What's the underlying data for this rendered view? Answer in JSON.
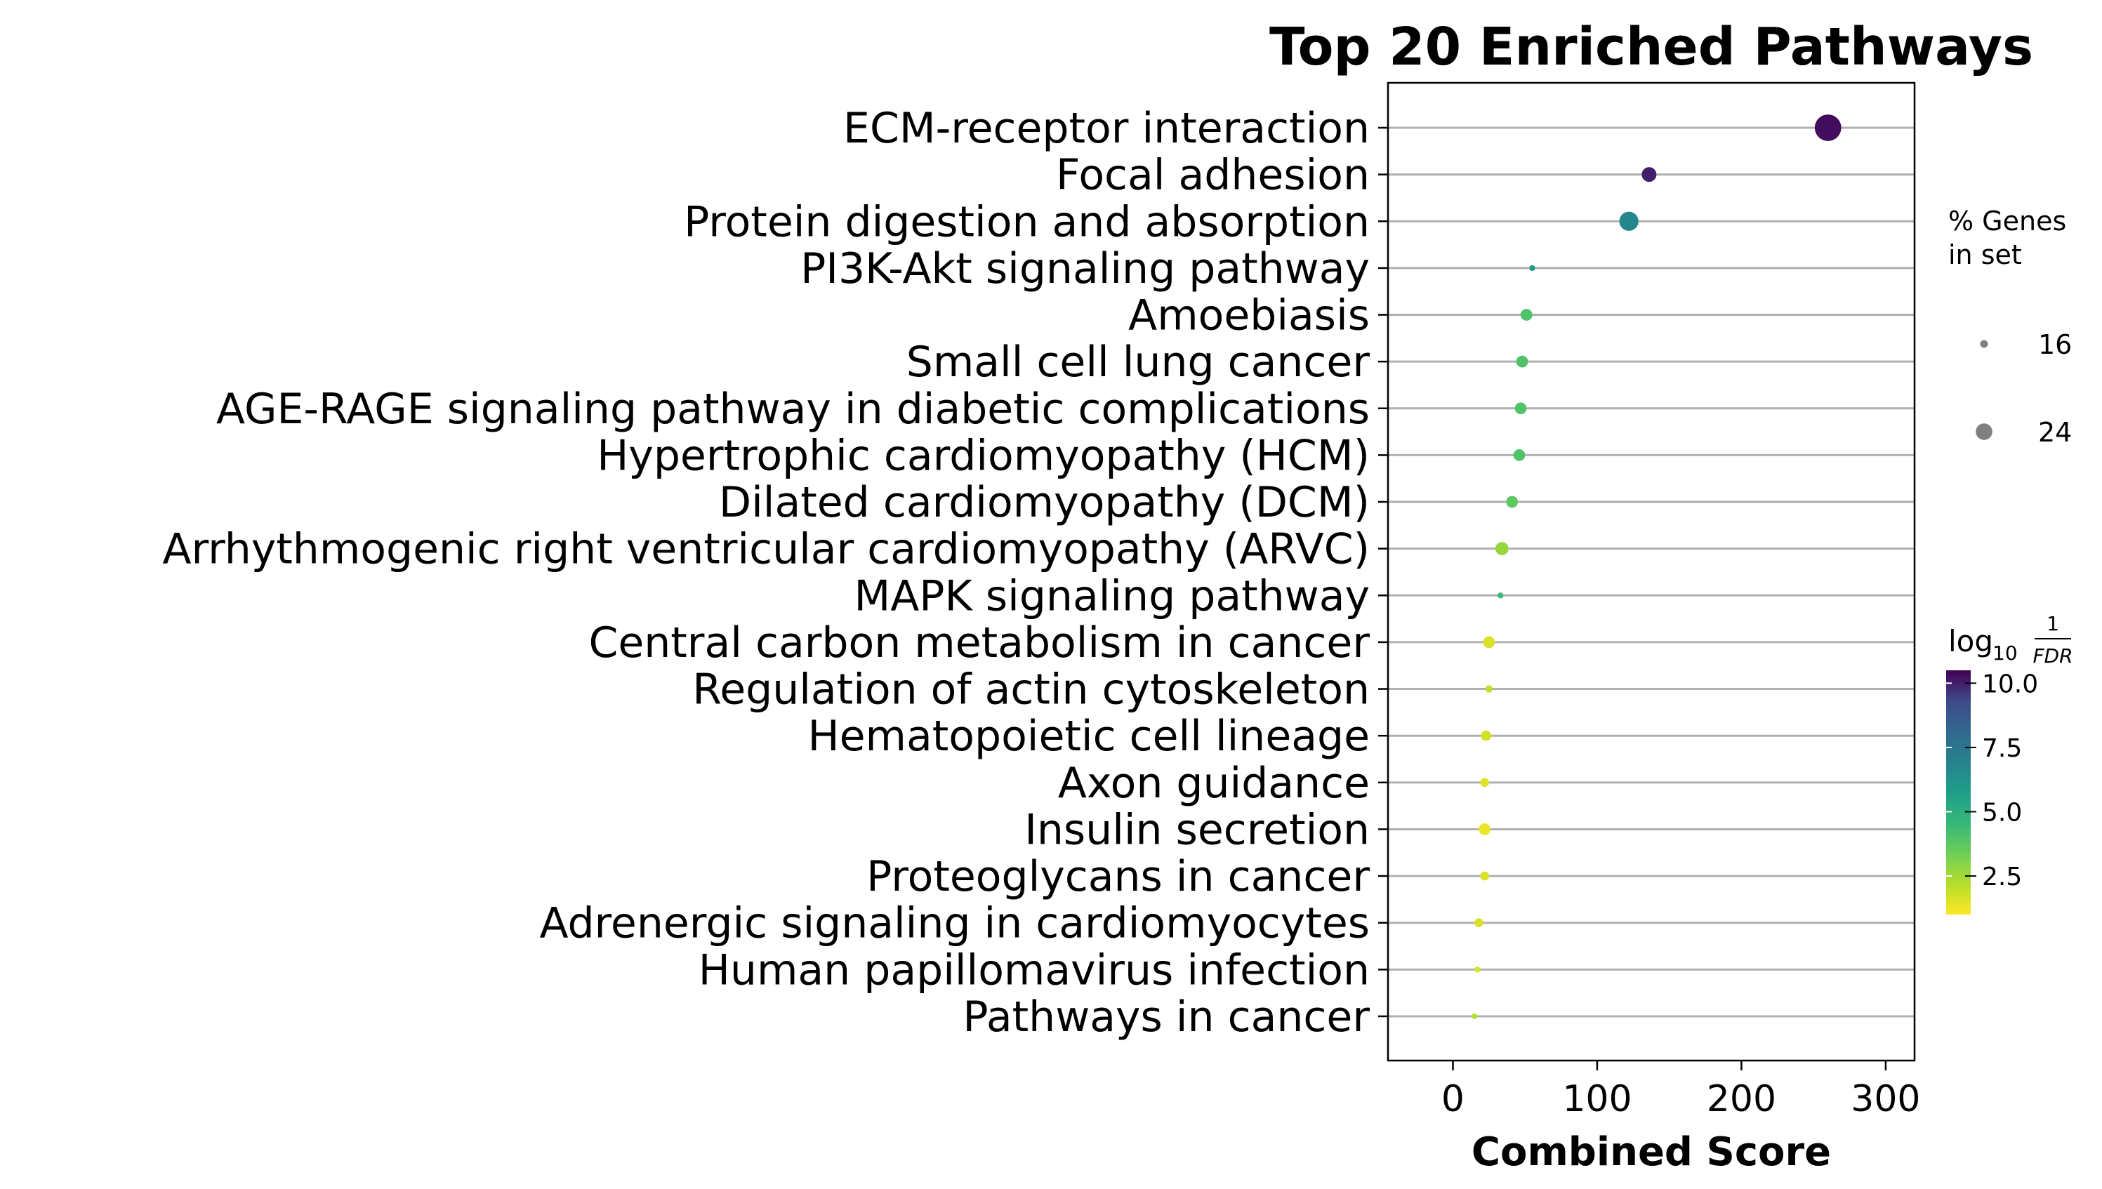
{
  "chart_data": {
    "type": "scatter",
    "title": "Top 20 Enriched Pathways",
    "xlabel": "Combined Score",
    "ylabel": "",
    "xlim": [
      -45,
      320
    ],
    "xticks": [
      0,
      100,
      200,
      300
    ],
    "grid": "horizontal lines at each category",
    "categories": [
      "ECM-receptor interaction",
      "Focal adhesion",
      "Protein digestion and absorption",
      "PI3K-Akt signaling pathway",
      "Amoebiasis",
      "Small cell lung cancer",
      "AGE-RAGE signaling pathway in diabetic complications",
      "Hypertrophic cardiomyopathy (HCM)",
      "Dilated cardiomyopathy (DCM)",
      "Arrhythmogenic right ventricular cardiomyopathy (ARVC)",
      "MAPK signaling pathway",
      "Central carbon metabolism in cancer",
      "Regulation of actin cytoskeleton",
      "Hematopoietic cell lineage",
      "Axon guidance",
      "Insulin secretion",
      "Proteoglycans in cancer",
      "Adrenergic signaling in cardiomyocytes",
      "Human papillomavirus infection",
      "Pathways in cancer"
    ],
    "combined_score": [
      260,
      136,
      122,
      55,
      51,
      48,
      47,
      46,
      41,
      34,
      33,
      25,
      25,
      23,
      22,
      22,
      22,
      18,
      17,
      15
    ],
    "pct_genes_in_set": [
      27,
      19,
      22,
      13,
      17,
      17,
      17,
      17,
      17,
      18,
      13,
      17,
      14,
      16,
      15,
      17,
      15,
      15,
      13,
      12
    ],
    "neg_log10_fdr": [
      10.3,
      10.0,
      6.8,
      6.0,
      4.0,
      4.0,
      4.0,
      4.0,
      3.7,
      2.7,
      4.5,
      1.6,
      2.0,
      1.7,
      1.5,
      1.3,
      1.6,
      1.6,
      1.7,
      2.2
    ],
    "size_legend": {
      "title_line1": "% Genes",
      "title_line2": "in set",
      "entries": [
        {
          "label": "16",
          "value": 16
        },
        {
          "label": "24",
          "value": 24
        }
      ]
    },
    "colorbar": {
      "title_log": "log",
      "title_sub": "10",
      "title_numerator": "1",
      "title_denominator": "FDR",
      "colormap": "viridis (reversed)",
      "range": [
        1.0,
        10.5
      ],
      "ticks": [
        {
          "label": "10.0",
          "value": 10.0
        },
        {
          "label": "7.5",
          "value": 7.5
        },
        {
          "label": "5.0",
          "value": 5.0
        },
        {
          "label": "2.5",
          "value": 2.5
        }
      ]
    },
    "legend_placement": "right"
  }
}
